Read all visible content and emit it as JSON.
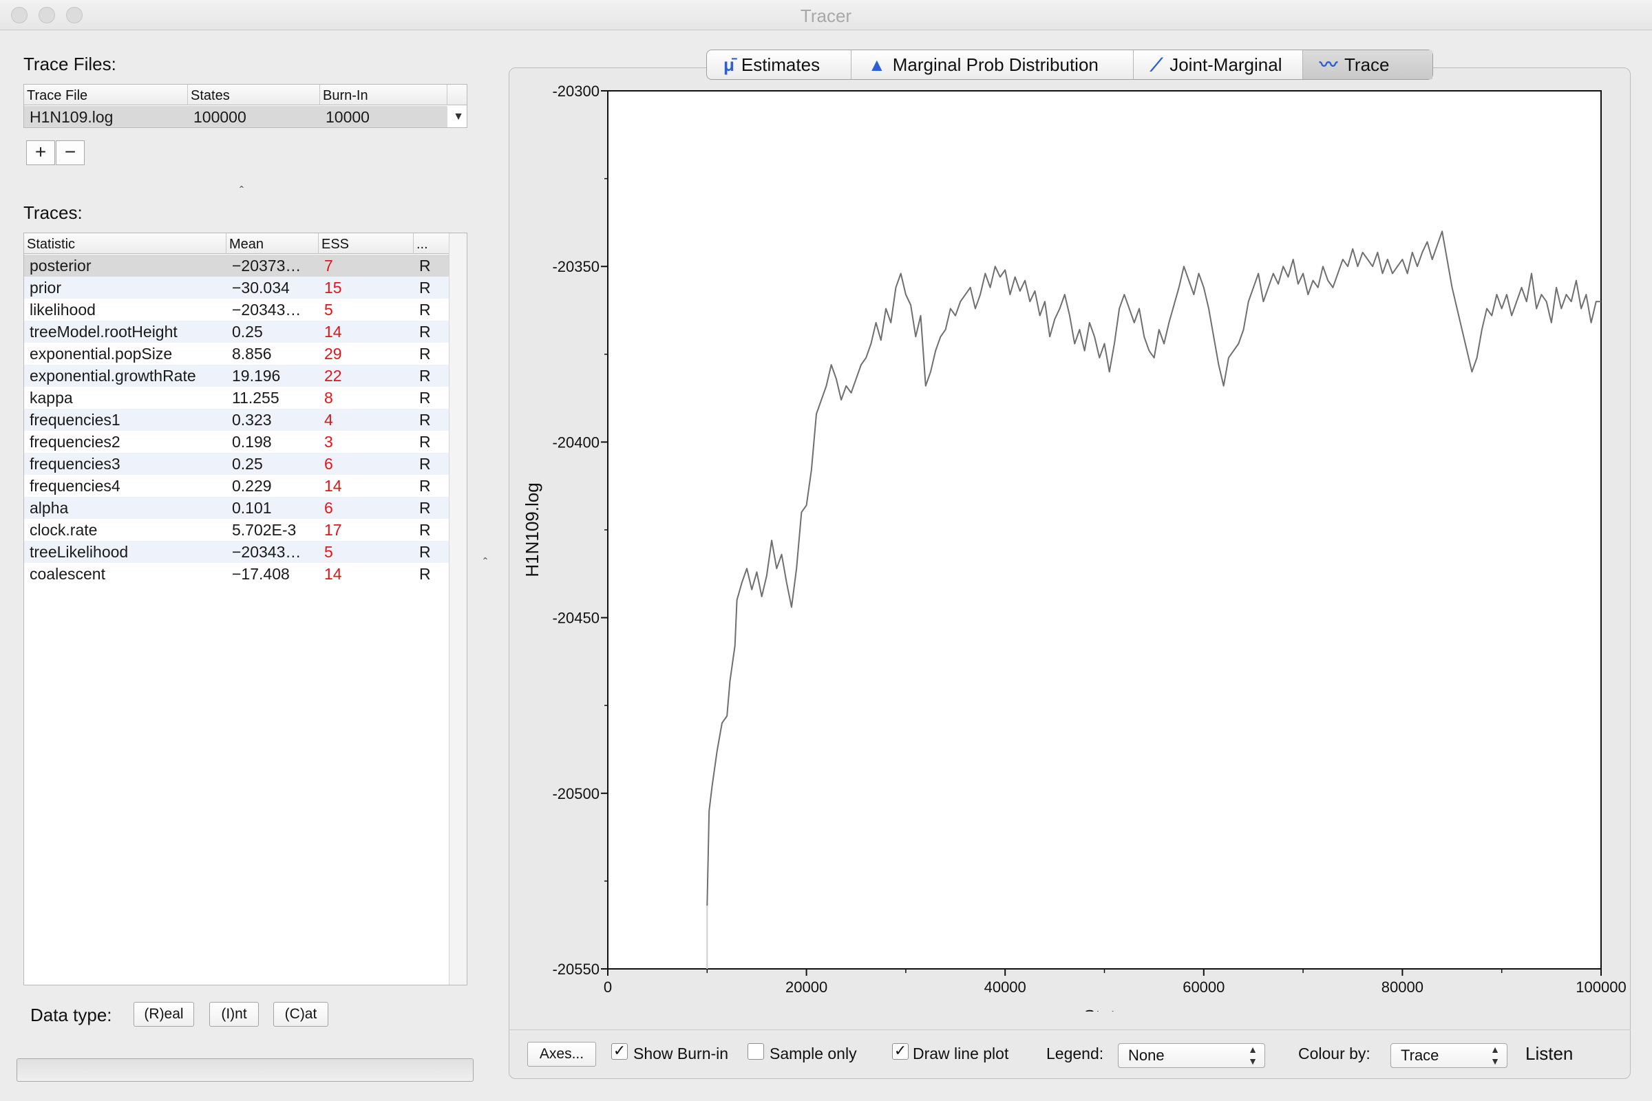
{
  "window": {
    "title": "Tracer"
  },
  "trace_files": {
    "label": "Trace Files:",
    "columns": [
      "Trace File",
      "States",
      "Burn-In"
    ],
    "rows": [
      {
        "file": "H1N109.log",
        "states": "100000",
        "burnin": "10000"
      }
    ],
    "add_label": "+",
    "remove_label": "−"
  },
  "traces": {
    "label": "Traces:",
    "columns": [
      "Statistic",
      "Mean",
      "ESS",
      "..."
    ],
    "rows": [
      {
        "statistic": "posterior",
        "mean": "−20373…",
        "ess": "7",
        "type": "R"
      },
      {
        "statistic": "prior",
        "mean": "−30.034",
        "ess": "15",
        "type": "R"
      },
      {
        "statistic": "likelihood",
        "mean": "−20343…",
        "ess": "5",
        "type": "R"
      },
      {
        "statistic": "treeModel.rootHeight",
        "mean": "0.25",
        "ess": "14",
        "type": "R"
      },
      {
        "statistic": "exponential.popSize",
        "mean": "8.856",
        "ess": "29",
        "type": "R"
      },
      {
        "statistic": "exponential.growthRate",
        "mean": "19.196",
        "ess": "22",
        "type": "R"
      },
      {
        "statistic": "kappa",
        "mean": "11.255",
        "ess": "8",
        "type": "R"
      },
      {
        "statistic": "frequencies1",
        "mean": "0.323",
        "ess": "4",
        "type": "R"
      },
      {
        "statistic": "frequencies2",
        "mean": "0.198",
        "ess": "3",
        "type": "R"
      },
      {
        "statistic": "frequencies3",
        "mean": "0.25",
        "ess": "6",
        "type": "R"
      },
      {
        "statistic": "frequencies4",
        "mean": "0.229",
        "ess": "14",
        "type": "R"
      },
      {
        "statistic": "alpha",
        "mean": "0.101",
        "ess": "6",
        "type": "R"
      },
      {
        "statistic": "clock.rate",
        "mean": "5.702E-3",
        "ess": "17",
        "type": "R"
      },
      {
        "statistic": "treeLikelihood",
        "mean": "−20343…",
        "ess": "5",
        "type": "R"
      },
      {
        "statistic": "coalescent",
        "mean": "−17.408",
        "ess": "14",
        "type": "R"
      }
    ],
    "selected_row": 0
  },
  "data_type": {
    "label": "Data type:",
    "buttons": [
      "(R)eal",
      "(I)nt",
      "(C)at"
    ]
  },
  "tabs": [
    {
      "label": "Estimates",
      "icon": "mu-bar-icon"
    },
    {
      "label": "Marginal Prob Distribution",
      "icon": "distribution-icon"
    },
    {
      "label": "Joint-Marginal",
      "icon": "joint-marginal-icon"
    },
    {
      "label": "Trace",
      "icon": "trace-icon",
      "selected": true
    }
  ],
  "controls": {
    "axes_button": "Axes...",
    "show_burnin": {
      "label": "Show Burn-in",
      "checked": true
    },
    "sample_only": {
      "label": "Sample only",
      "checked": false
    },
    "draw_line_plot": {
      "label": "Draw line plot",
      "checked": true
    },
    "legend_label": "Legend:",
    "legend_value": "None",
    "colour_by_label": "Colour by:",
    "colour_by_value": "Trace",
    "listen_label": "Listen"
  },
  "chart_data": {
    "type": "line",
    "title": "",
    "xlabel": "State",
    "ylabel": "H1N109.log",
    "xlim": [
      0,
      100000
    ],
    "ylim": [
      -20550,
      -20300
    ],
    "x_ticks": [
      "0",
      "20000",
      "40000",
      "60000",
      "80000",
      "100000"
    ],
    "y_ticks": [
      "-20300",
      "-20350",
      "-20400",
      "-20450",
      "-20500",
      "-20550"
    ],
    "colors": {
      "trace": "#6f6f6f",
      "burnin": "#cfcfcf"
    },
    "burnin": [
      {
        "x": 10000,
        "y": -20550
      },
      {
        "x": 10000,
        "y": -20532
      }
    ],
    "series": [
      {
        "values": [
          [
            10000,
            -20532
          ],
          [
            10200,
            -20505
          ],
          [
            10500,
            -20498
          ],
          [
            11000,
            -20488
          ],
          [
            11500,
            -20480
          ],
          [
            12000,
            -20478
          ],
          [
            12300,
            -20468
          ],
          [
            12800,
            -20458
          ],
          [
            13000,
            -20445
          ],
          [
            13500,
            -20440
          ],
          [
            14000,
            -20436
          ],
          [
            14500,
            -20442
          ],
          [
            15000,
            -20437
          ],
          [
            15500,
            -20444
          ],
          [
            16000,
            -20438
          ],
          [
            16500,
            -20428
          ],
          [
            17000,
            -20436
          ],
          [
            17500,
            -20432
          ],
          [
            18000,
            -20440
          ],
          [
            18500,
            -20447
          ],
          [
            19000,
            -20436
          ],
          [
            19500,
            -20420
          ],
          [
            20000,
            -20418
          ],
          [
            20500,
            -20408
          ],
          [
            21000,
            -20392
          ],
          [
            21500,
            -20388
          ],
          [
            22000,
            -20384
          ],
          [
            22500,
            -20378
          ],
          [
            23000,
            -20382
          ],
          [
            23500,
            -20388
          ],
          [
            24000,
            -20384
          ],
          [
            24500,
            -20386
          ],
          [
            25000,
            -20382
          ],
          [
            25500,
            -20378
          ],
          [
            26000,
            -20376
          ],
          [
            26500,
            -20372
          ],
          [
            27000,
            -20366
          ],
          [
            27500,
            -20371
          ],
          [
            28000,
            -20362
          ],
          [
            28500,
            -20366
          ],
          [
            29000,
            -20356
          ],
          [
            29500,
            -20352
          ],
          [
            30000,
            -20358
          ],
          [
            30500,
            -20361
          ],
          [
            31000,
            -20370
          ],
          [
            31500,
            -20364
          ],
          [
            32000,
            -20384
          ],
          [
            32500,
            -20380
          ],
          [
            33000,
            -20374
          ],
          [
            33500,
            -20370
          ],
          [
            34000,
            -20368
          ],
          [
            34500,
            -20362
          ],
          [
            35000,
            -20364
          ],
          [
            35500,
            -20360
          ],
          [
            36000,
            -20358
          ],
          [
            36500,
            -20356
          ],
          [
            37000,
            -20362
          ],
          [
            37500,
            -20358
          ],
          [
            38000,
            -20352
          ],
          [
            38500,
            -20356
          ],
          [
            39000,
            -20350
          ],
          [
            39500,
            -20353
          ],
          [
            40000,
            -20351
          ],
          [
            40500,
            -20358
          ],
          [
            41000,
            -20353
          ],
          [
            41500,
            -20357
          ],
          [
            42000,
            -20354
          ],
          [
            42500,
            -20360
          ],
          [
            43000,
            -20357
          ],
          [
            43500,
            -20364
          ],
          [
            44000,
            -20360
          ],
          [
            44500,
            -20370
          ],
          [
            45000,
            -20365
          ],
          [
            45500,
            -20362
          ],
          [
            46000,
            -20358
          ],
          [
            46500,
            -20364
          ],
          [
            47000,
            -20372
          ],
          [
            47500,
            -20368
          ],
          [
            48000,
            -20374
          ],
          [
            48500,
            -20366
          ],
          [
            49000,
            -20370
          ],
          [
            49500,
            -20376
          ],
          [
            50000,
            -20372
          ],
          [
            50500,
            -20380
          ],
          [
            51000,
            -20372
          ],
          [
            51500,
            -20362
          ],
          [
            52000,
            -20358
          ],
          [
            52500,
            -20362
          ],
          [
            53000,
            -20366
          ],
          [
            53500,
            -20362
          ],
          [
            54000,
            -20370
          ],
          [
            54500,
            -20374
          ],
          [
            55000,
            -20376
          ],
          [
            55500,
            -20368
          ],
          [
            56000,
            -20372
          ],
          [
            56500,
            -20366
          ],
          [
            57000,
            -20361
          ],
          [
            57500,
            -20356
          ],
          [
            58000,
            -20350
          ],
          [
            58500,
            -20354
          ],
          [
            59000,
            -20358
          ],
          [
            59500,
            -20352
          ],
          [
            60000,
            -20356
          ],
          [
            60500,
            -20362
          ],
          [
            61000,
            -20370
          ],
          [
            61500,
            -20378
          ],
          [
            62000,
            -20384
          ],
          [
            62500,
            -20376
          ],
          [
            63000,
            -20374
          ],
          [
            63500,
            -20372
          ],
          [
            64000,
            -20368
          ],
          [
            64500,
            -20360
          ],
          [
            65000,
            -20356
          ],
          [
            65500,
            -20352
          ],
          [
            66000,
            -20360
          ],
          [
            66500,
            -20356
          ],
          [
            67000,
            -20352
          ],
          [
            67500,
            -20355
          ],
          [
            68000,
            -20350
          ],
          [
            68500,
            -20353
          ],
          [
            69000,
            -20348
          ],
          [
            69500,
            -20355
          ],
          [
            70000,
            -20352
          ],
          [
            70500,
            -20358
          ],
          [
            71000,
            -20354
          ],
          [
            71500,
            -20356
          ],
          [
            72000,
            -20350
          ],
          [
            72500,
            -20354
          ],
          [
            73000,
            -20356
          ],
          [
            73500,
            -20352
          ],
          [
            74000,
            -20348
          ],
          [
            74500,
            -20350
          ],
          [
            75000,
            -20345
          ],
          [
            75500,
            -20350
          ],
          [
            76000,
            -20346
          ],
          [
            76500,
            -20348
          ],
          [
            77000,
            -20350
          ],
          [
            77500,
            -20346
          ],
          [
            78000,
            -20352
          ],
          [
            78500,
            -20348
          ],
          [
            79000,
            -20352
          ],
          [
            79500,
            -20350
          ],
          [
            80000,
            -20348
          ],
          [
            80500,
            -20352
          ],
          [
            81000,
            -20346
          ],
          [
            81500,
            -20350
          ],
          [
            82000,
            -20346
          ],
          [
            82500,
            -20343
          ],
          [
            83000,
            -20348
          ],
          [
            83500,
            -20344
          ],
          [
            84000,
            -20340
          ],
          [
            84500,
            -20348
          ],
          [
            85000,
            -20356
          ],
          [
            85500,
            -20362
          ],
          [
            86000,
            -20368
          ],
          [
            86500,
            -20374
          ],
          [
            87000,
            -20380
          ],
          [
            87500,
            -20376
          ],
          [
            88000,
            -20368
          ],
          [
            88500,
            -20362
          ],
          [
            89000,
            -20364
          ],
          [
            89500,
            -20358
          ],
          [
            90000,
            -20362
          ],
          [
            90500,
            -20358
          ],
          [
            91000,
            -20364
          ],
          [
            91500,
            -20360
          ],
          [
            92000,
            -20356
          ],
          [
            92500,
            -20360
          ],
          [
            93000,
            -20352
          ],
          [
            93500,
            -20362
          ],
          [
            94000,
            -20358
          ],
          [
            94500,
            -20360
          ],
          [
            95000,
            -20366
          ],
          [
            95500,
            -20356
          ],
          [
            96000,
            -20362
          ],
          [
            96500,
            -20358
          ],
          [
            97000,
            -20360
          ],
          [
            97500,
            -20354
          ],
          [
            98000,
            -20362
          ],
          [
            98500,
            -20358
          ],
          [
            99000,
            -20366
          ],
          [
            99500,
            -20360
          ],
          [
            100000,
            -20360
          ]
        ]
      }
    ],
    "grid": false,
    "legend": "none"
  }
}
